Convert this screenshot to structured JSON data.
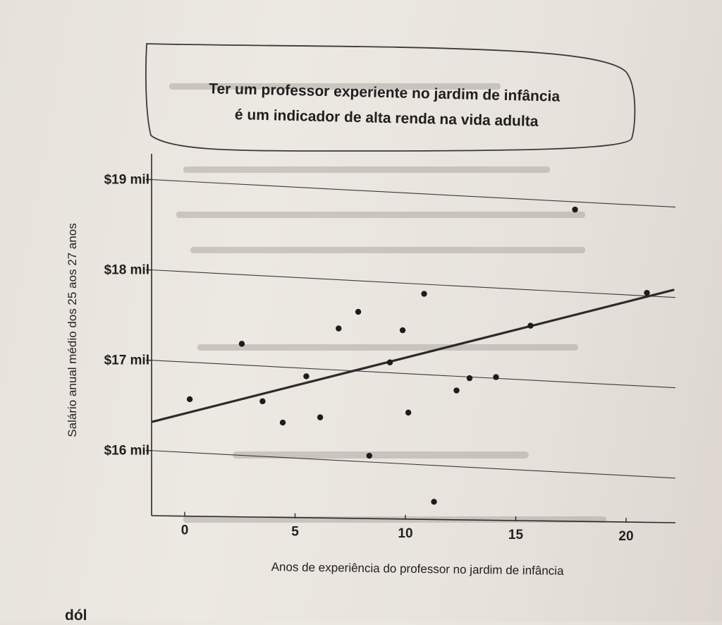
{
  "chart_data": {
    "type": "scatter",
    "title_lines": [
      "Ter um professor experiente no jardim de infância",
      "é um indicador de alta renda na vida adulta"
    ],
    "xlabel": "Anos de experiência do professor no jardim de infância",
    "ylabel": "Salário anual médio dos 25 aos 27 anos",
    "xlim": [
      -1.5,
      22.5
    ],
    "ylim": [
      15.45,
      19.25
    ],
    "x_ticks": [
      0,
      5,
      10,
      15,
      20
    ],
    "x_tick_labels": [
      "0",
      "5",
      "10",
      "15",
      "20"
    ],
    "y_ticks": [
      16,
      17,
      18,
      19
    ],
    "y_tick_labels": [
      "$16 mil",
      "$17 mil",
      "$18 mil",
      "$19 mil"
    ],
    "grid": "horizontal",
    "points": [
      {
        "x": 0.2,
        "y": 16.58
      },
      {
        "x": 2.6,
        "y": 17.21
      },
      {
        "x": 3.5,
        "y": 16.58
      },
      {
        "x": 4.4,
        "y": 16.35
      },
      {
        "x": 5.5,
        "y": 16.87
      },
      {
        "x": 6.1,
        "y": 16.42
      },
      {
        "x": 7.0,
        "y": 17.41
      },
      {
        "x": 7.9,
        "y": 17.6
      },
      {
        "x": 8.3,
        "y": 16.01
      },
      {
        "x": 9.3,
        "y": 17.05
      },
      {
        "x": 9.9,
        "y": 17.41
      },
      {
        "x": 10.1,
        "y": 16.5
      },
      {
        "x": 10.9,
        "y": 17.82
      },
      {
        "x": 11.2,
        "y": 15.52
      },
      {
        "x": 12.3,
        "y": 16.76
      },
      {
        "x": 12.9,
        "y": 16.9
      },
      {
        "x": 14.1,
        "y": 16.92
      },
      {
        "x": 15.7,
        "y": 17.5
      },
      {
        "x": 17.8,
        "y": 18.8
      },
      {
        "x": 21.0,
        "y": 17.9
      }
    ],
    "trend_line": {
      "x": [
        -1.5,
        22.2
      ],
      "y": [
        16.32,
        17.94
      ]
    }
  },
  "page_fragment": "dól"
}
